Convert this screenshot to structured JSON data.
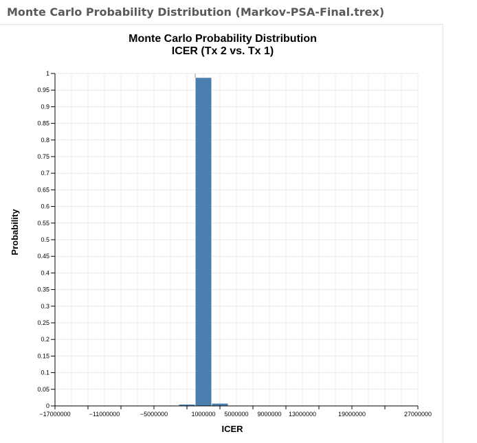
{
  "window": {
    "title": "Monte Carlo Probability Distribution (Markov-PSA-Final.trex)"
  },
  "colors": {
    "bar": "#4a7fb0",
    "grid": "#e8e8e8",
    "axis": "#000000"
  },
  "chart_data": {
    "type": "bar",
    "title": "Monte Carlo Probability Distribution",
    "subtitle": "ICER (Tx 2 vs. Tx 1)",
    "xlabel": "ICER",
    "ylabel": "Probability",
    "grid": true,
    "xlim": [
      -17000000,
      27000000
    ],
    "ylim": [
      0,
      1
    ],
    "x_ticks": [
      -17000000,
      -11000000,
      -5000000,
      1000000,
      5000000,
      9000000,
      13000000,
      19000000,
      27000000
    ],
    "x_tick_labels": [
      "−17000000",
      "−11000000",
      "−5000000",
      "1000000",
      "5000000",
      "9000000",
      "13000000",
      "19000000",
      "27000000"
    ],
    "y_ticks": [
      0,
      0.05,
      0.1,
      0.15,
      0.2,
      0.25,
      0.3,
      0.35,
      0.4,
      0.45,
      0.5,
      0.55,
      0.6,
      0.65,
      0.7,
      0.75,
      0.8,
      0.85,
      0.9,
      0.95,
      1
    ],
    "y_tick_labels": [
      "0",
      "0.05",
      "0.1",
      "0.15",
      "0.2",
      "0.25",
      "0.3",
      "0.35",
      "0.4",
      "0.45",
      "0.5",
      "0.55",
      "0.6",
      "0.65",
      "0.7",
      "0.75",
      "0.8",
      "0.85",
      "0.9",
      "0.95",
      "1"
    ],
    "bins": [
      {
        "x0": -2000000,
        "x1": 0,
        "value": 0.004
      },
      {
        "x0": 0,
        "x1": 2000000,
        "value": 0.987
      },
      {
        "x0": 2000000,
        "x1": 4000000,
        "value": 0.007
      },
      {
        "x0": 4000000,
        "x1": 6000000,
        "value": 0.001
      }
    ],
    "error_bar": {
      "x": 0,
      "low": 0.987,
      "high": 1.0
    }
  }
}
